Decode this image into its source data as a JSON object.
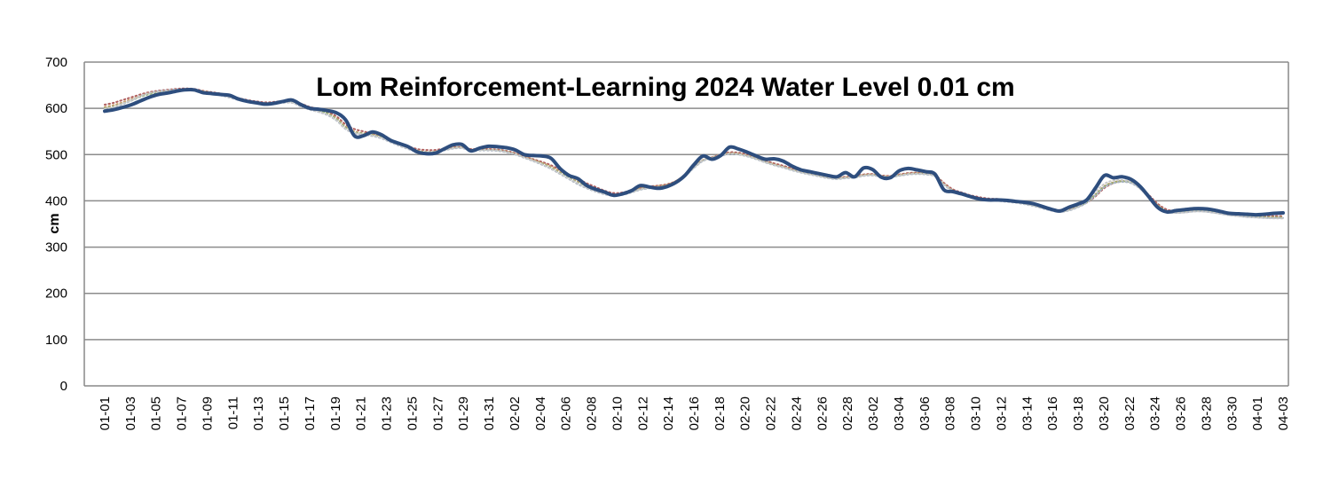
{
  "chart_data": {
    "type": "line",
    "title": "Lom Reinforcement-Learning 2024 Water Level 0.01 cm",
    "ylabel": "cm",
    "xlabel": "",
    "ylim": [
      0,
      700
    ],
    "yticks": [
      0,
      100,
      200,
      300,
      400,
      500,
      600,
      700
    ],
    "grid": "horizontal",
    "legend": "none",
    "x_ticks": [
      "01-01",
      "01-03",
      "01-05",
      "01-07",
      "01-09",
      "01-11",
      "01-13",
      "01-15",
      "01-17",
      "01-19",
      "01-21",
      "01-23",
      "01-25",
      "01-27",
      "01-29",
      "01-31",
      "02-02",
      "02-04",
      "02-06",
      "02-08",
      "02-10",
      "02-12",
      "02-14",
      "02-16",
      "02-18",
      "02-20",
      "02-22",
      "02-24",
      "02-26",
      "02-28",
      "03-02",
      "03-04",
      "03-06",
      "03-08",
      "03-10",
      "03-12",
      "03-14",
      "03-16",
      "03-18",
      "03-20",
      "03-22",
      "03-24",
      "03-26",
      "03-28",
      "03-30",
      "04-01",
      "04-03"
    ],
    "series": [
      {
        "color": "#2e4e7e",
        "style": "solid",
        "values": [
          594,
          597,
          602,
          608,
          616,
          624,
          630,
          633,
          637,
          640,
          640,
          634,
          632,
          630,
          628,
          620,
          615,
          612,
          609,
          611,
          615,
          618,
          608,
          600,
          598,
          595,
          590,
          575,
          540,
          541,
          549,
          543,
          531,
          524,
          517,
          506,
          502,
          503,
          512,
          521,
          522,
          508,
          514,
          518,
          517,
          515,
          510,
          500,
          498,
          497,
          492,
          470,
          455,
          448,
          433,
          425,
          419,
          412,
          415,
          422,
          433,
          430,
          427,
          431,
          440,
          455,
          478,
          497,
          490,
          498,
          516,
          512,
          505,
          497,
          490,
          491,
          486,
          475,
          467,
          463,
          459,
          455,
          452,
          461,
          452,
          471,
          468,
          451,
          450,
          465,
          470,
          467,
          463,
          458,
          424,
          420,
          415,
          409,
          404,
          402,
          402,
          401,
          399,
          397,
          394,
          388,
          382,
          378,
          386,
          393,
          402,
          428,
          455,
          450,
          452,
          446,
          431,
          408,
          385,
          376,
          379,
          381,
          383,
          383,
          381,
          377,
          373,
          372,
          371,
          370,
          371,
          373,
          374
        ]
      },
      {
        "color": "#b06060",
        "style": "dotted",
        "values": [
          608,
          612,
          618,
          624,
          630,
          635,
          638,
          640,
          642,
          643,
          642,
          638,
          635,
          632,
          627,
          622,
          618,
          615,
          613,
          614,
          616,
          617,
          610,
          603,
          598,
          592,
          582,
          565,
          555,
          550,
          545,
          540,
          532,
          525,
          518,
          512,
          510,
          510,
          513,
          516,
          516,
          512,
          512,
          512,
          511,
          508,
          503,
          496,
          490,
          484,
          477,
          467,
          457,
          448,
          438,
          430,
          422,
          417,
          418,
          423,
          428,
          431,
          433,
          436,
          443,
          456,
          472,
          487,
          494,
          500,
          505,
          504,
          500,
          494,
          487,
          481,
          476,
          470,
          465,
          460,
          456,
          452,
          450,
          452,
          453,
          457,
          458,
          455,
          454,
          457,
          460,
          461,
          460,
          456,
          439,
          425,
          418,
          412,
          408,
          405,
          404,
          402,
          400,
          397,
          393,
          388,
          383,
          380,
          382,
          388,
          396,
          410,
          428,
          438,
          442,
          440,
          430,
          412,
          393,
          381,
          378,
          379,
          381,
          381,
          379,
          376,
          373,
          371,
          369,
          368,
          367,
          367,
          367
        ]
      },
      {
        "color": "#c8a070",
        "style": "dotted",
        "values": [
          603,
          607,
          613,
          620,
          627,
          633,
          636,
          638,
          640,
          641,
          640,
          637,
          634,
          631,
          626,
          621,
          616,
          613,
          611,
          612,
          614,
          615,
          608,
          601,
          596,
          589,
          578,
          560,
          550,
          546,
          543,
          538,
          530,
          522,
          515,
          509,
          506,
          507,
          511,
          515,
          516,
          511,
          511,
          511,
          510,
          507,
          502,
          495,
          489,
          482,
          474,
          463,
          452,
          442,
          432,
          425,
          418,
          414,
          416,
          421,
          427,
          430,
          432,
          435,
          443,
          457,
          474,
          488,
          494,
          499,
          503,
          502,
          498,
          492,
          485,
          479,
          474,
          468,
          463,
          459,
          455,
          451,
          449,
          451,
          452,
          456,
          457,
          454,
          453,
          456,
          459,
          460,
          459,
          455,
          437,
          423,
          416,
          410,
          406,
          403,
          402,
          400,
          398,
          395,
          391,
          386,
          381,
          378,
          381,
          388,
          398,
          414,
          432,
          440,
          443,
          440,
          428,
          409,
          390,
          378,
          376,
          377,
          379,
          379,
          377,
          374,
          371,
          369,
          367,
          366,
          365,
          365,
          365
        ]
      },
      {
        "color": "#8caf68",
        "style": "dotted",
        "values": [
          600,
          604,
          610,
          617,
          625,
          631,
          635,
          637,
          639,
          640,
          639,
          636,
          633,
          630,
          625,
          620,
          616,
          613,
          611,
          612,
          614,
          614,
          607,
          600,
          595,
          588,
          576,
          558,
          548,
          545,
          542,
          537,
          529,
          521,
          514,
          508,
          505,
          506,
          510,
          514,
          515,
          510,
          510,
          510,
          509,
          506,
          501,
          494,
          487,
          480,
          471,
          460,
          449,
          439,
          429,
          422,
          416,
          412,
          414,
          419,
          425,
          428,
          430,
          433,
          441,
          455,
          472,
          487,
          493,
          498,
          502,
          501,
          497,
          491,
          484,
          478,
          473,
          467,
          462,
          458,
          454,
          450,
          448,
          450,
          451,
          455,
          456,
          453,
          452,
          455,
          458,
          459,
          458,
          454,
          436,
          422,
          415,
          409,
          405,
          402,
          401,
          399,
          397,
          394,
          390,
          385,
          380,
          377,
          380,
          387,
          397,
          413,
          431,
          439,
          442,
          439,
          427,
          408,
          389,
          377,
          375,
          376,
          378,
          378,
          376,
          373,
          370,
          368,
          366,
          365,
          364,
          364,
          364
        ]
      },
      {
        "color": "#aab4c4",
        "style": "dotted",
        "values": [
          597,
          602,
          609,
          617,
          626,
          633,
          637,
          639,
          641,
          641,
          639,
          635,
          632,
          628,
          623,
          618,
          614,
          611,
          610,
          611,
          612,
          612,
          604,
          597,
          592,
          585,
          573,
          555,
          546,
          543,
          540,
          535,
          527,
          519,
          512,
          506,
          504,
          505,
          509,
          513,
          514,
          509,
          509,
          509,
          508,
          505,
          500,
          493,
          486,
          478,
          469,
          458,
          447,
          436,
          427,
          420,
          414,
          411,
          413,
          418,
          424,
          427,
          429,
          432,
          440,
          454,
          471,
          486,
          492,
          497,
          501,
          500,
          496,
          490,
          483,
          477,
          472,
          466,
          461,
          457,
          453,
          449,
          447,
          449,
          450,
          454,
          455,
          452,
          451,
          454,
          457,
          458,
          457,
          453,
          435,
          421,
          414,
          408,
          404,
          401,
          400,
          398,
          396,
          393,
          389,
          384,
          379,
          376,
          379,
          386,
          396,
          412,
          430,
          438,
          441,
          438,
          426,
          407,
          388,
          376,
          374,
          375,
          377,
          377,
          375,
          372,
          369,
          367,
          365,
          364,
          363,
          363,
          363
        ]
      },
      {
        "color": "#c8c8c8",
        "style": "dotted",
        "values": [
          599,
          603,
          610,
          618,
          627,
          633,
          636,
          638,
          639,
          640,
          638,
          635,
          632,
          629,
          624,
          619,
          615,
          612,
          610,
          611,
          613,
          612,
          605,
          598,
          592,
          586,
          574,
          556,
          547,
          544,
          541,
          536,
          528,
          520,
          513,
          507,
          505,
          506,
          510,
          514,
          515,
          510,
          510,
          510,
          509,
          506,
          501,
          494,
          487,
          479,
          470,
          459,
          448,
          438,
          428,
          421,
          415,
          412,
          414,
          419,
          425,
          428,
          430,
          433,
          441,
          455,
          472,
          487,
          493,
          498,
          502,
          501,
          497,
          491,
          484,
          478,
          473,
          467,
          462,
          458,
          454,
          450,
          448,
          450,
          451,
          455,
          456,
          453,
          452,
          455,
          458,
          459,
          458,
          454,
          436,
          422,
          415,
          409,
          405,
          402,
          401,
          399,
          397,
          394,
          390,
          385,
          380,
          377,
          380,
          387,
          401,
          420,
          437,
          444,
          445,
          440,
          426,
          406,
          387,
          376,
          374,
          375,
          377,
          377,
          375,
          372,
          369,
          367,
          365,
          364,
          363,
          362,
          362
        ]
      }
    ]
  }
}
